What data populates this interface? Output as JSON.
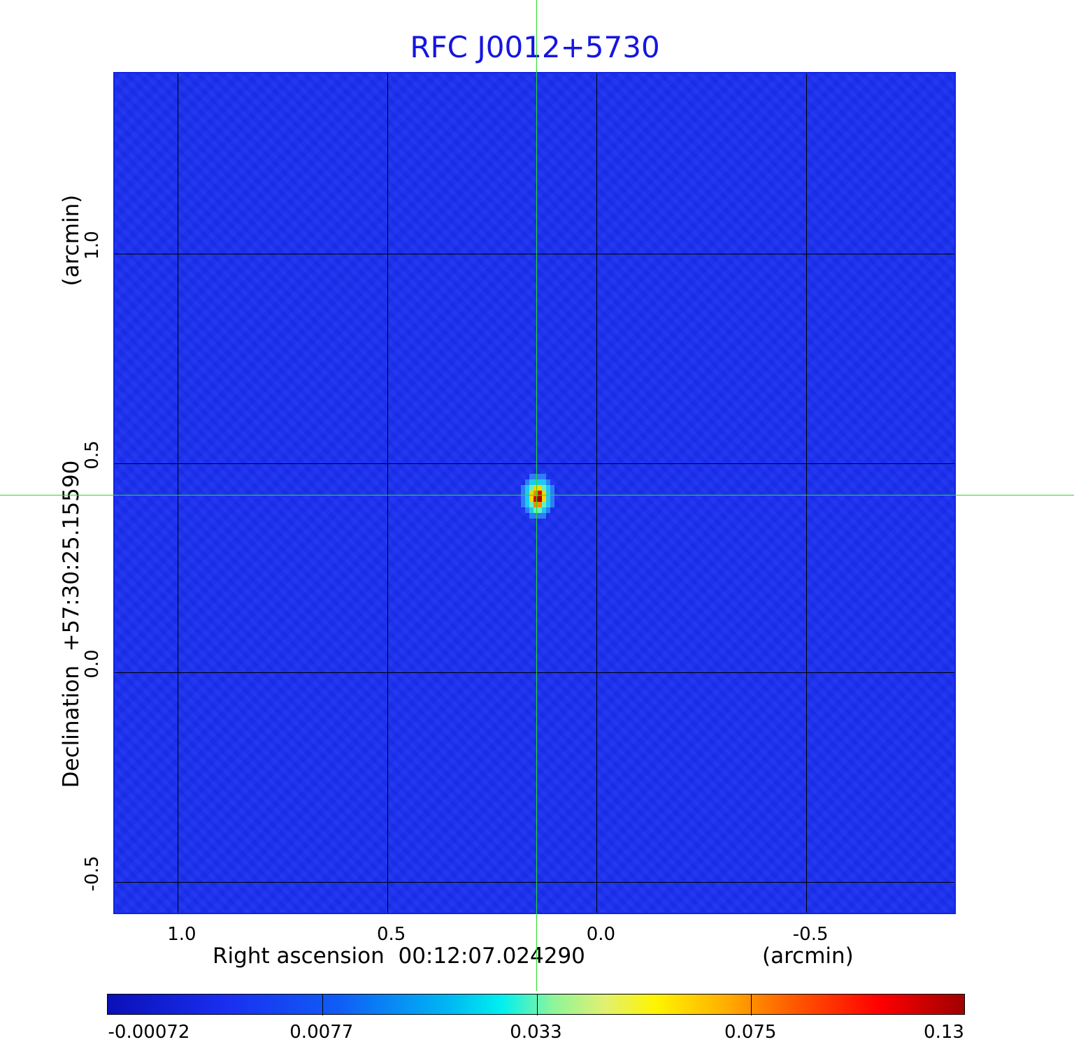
{
  "chart_data": {
    "type": "heatmap",
    "title": "RFC J0012+5730",
    "xlabel": "Right ascension  00:12:07.024290",
    "xunit": "(arcmin)",
    "ylabel": "Declination  +57:30:25.15590",
    "yunit": "(arcmin)",
    "xlim": [
      1.15,
      -0.86
    ],
    "ylim": [
      -0.58,
      1.43
    ],
    "x_ticks": [
      {
        "value": 1.0,
        "label": "1.0"
      },
      {
        "value": 0.5,
        "label": "0.5"
      },
      {
        "value": 0.0,
        "label": "0.0"
      },
      {
        "value": -0.5,
        "label": "-0.5"
      }
    ],
    "y_ticks": [
      {
        "value": 1.0,
        "label": "1.0"
      },
      {
        "value": 0.5,
        "label": "0.5"
      },
      {
        "value": 0.0,
        "label": "0.0"
      },
      {
        "value": -0.5,
        "label": "-0.5"
      }
    ],
    "grid": true,
    "source_peak": {
      "x": 0.14,
      "y": 0.42
    },
    "crosshair": {
      "x": 0.14,
      "y": 0.42
    },
    "colorbar": {
      "placement": "bottom",
      "ticks": [
        "-0.00072",
        "0.0077",
        "0.033",
        "0.075",
        "0.13"
      ]
    },
    "colors": {
      "background": "#1a2ff0",
      "title": "#1515e0",
      "crosshair": "#22e022"
    }
  }
}
